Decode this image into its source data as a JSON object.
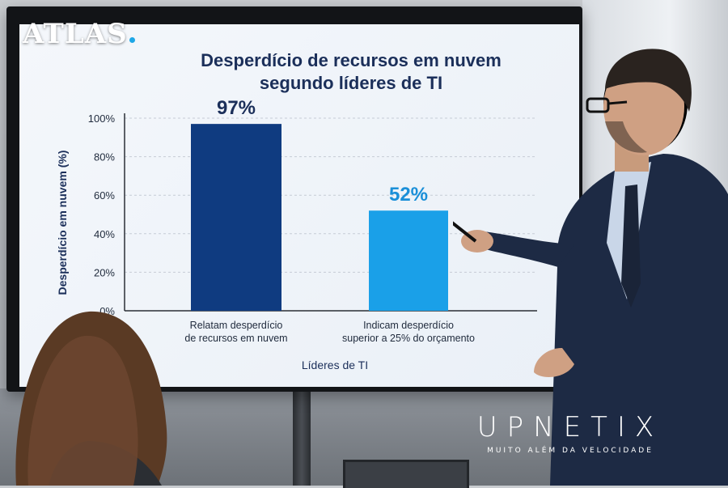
{
  "logos": {
    "atlas": "ATLAS",
    "upnetix_name": "UPNETIX",
    "upnetix_tagline": "MUITO ALÉM DA VELOCIDADE"
  },
  "colors": {
    "bar_dark": "#0f3b80",
    "bar_light": "#1aa0e8",
    "title": "#1b2f5a",
    "label_dark": "#1b2f5a",
    "label_light": "#1a8fd8"
  },
  "chart_data": {
    "type": "bar",
    "title_line1": "Desperdício de recursos em nuvem",
    "title_line2": "segundo líderes de TI",
    "ylabel": "Desperdício em nuvem (%)",
    "xlabel": "Líderes de TI",
    "ylim": [
      0,
      100
    ],
    "yticks": [
      "0%",
      "20%",
      "40%",
      "60%",
      "80%",
      "100%"
    ],
    "ytick_values": [
      0,
      20,
      40,
      60,
      80,
      100
    ],
    "grid": true,
    "categories": [
      [
        "Relatam desperdício",
        "de recursos em nuvem"
      ],
      [
        "Indicam desperdício",
        "superior a 25% do orçamento"
      ]
    ],
    "values": [
      97,
      52
    ],
    "data_labels": [
      "97%",
      "52%"
    ],
    "bar_colors": [
      "#0f3b80",
      "#1aa0e8"
    ]
  }
}
